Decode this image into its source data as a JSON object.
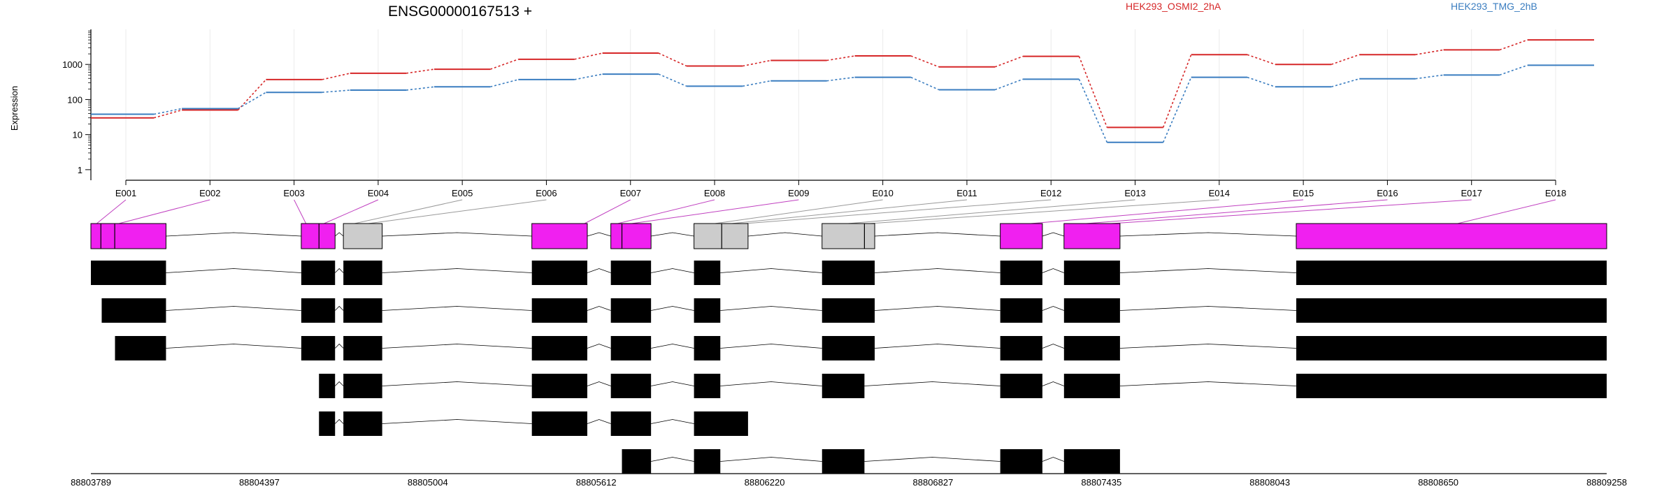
{
  "chart_data": {
    "type": "line",
    "title": "ENSG00000167513 +",
    "ylabel": "Expression",
    "yscale": "log",
    "ylim": [
      0.5,
      10000
    ],
    "yticks": [
      "1",
      "10",
      "100",
      "1000"
    ],
    "grid": true,
    "categories": [
      "E001",
      "E002",
      "E003",
      "E004",
      "E005",
      "E006",
      "E007",
      "E008",
      "E009",
      "E010",
      "E011",
      "E012",
      "E013",
      "E014",
      "E015",
      "E016",
      "E017",
      "E018"
    ],
    "series": [
      {
        "name": "HEK293_OSMI2_2hA",
        "color": "#d62728",
        "values": [
          30,
          50,
          370,
          560,
          730,
          1400,
          2100,
          900,
          1300,
          1750,
          850,
          1700,
          16,
          1900,
          1000,
          1900,
          2600,
          5000
        ]
      },
      {
        "name": "HEK293_TMG_2hB",
        "color": "#3a7dc0",
        "values": [
          38,
          55,
          160,
          185,
          230,
          370,
          530,
          240,
          340,
          430,
          190,
          380,
          6,
          430,
          230,
          390,
          500,
          950
        ]
      }
    ],
    "genomic_axis": {
      "ticks": [
        "88803789",
        "88804397",
        "88805004",
        "88805612",
        "88806220",
        "88806827",
        "88807435",
        "88808043",
        "88808650",
        "88809258"
      ],
      "range": [
        88803789,
        88809258
      ]
    },
    "gene_model": {
      "fill_significant": "#f020f0",
      "fill_nonsignificant": "#cccccc",
      "exons": [
        {
          "start": 88803789,
          "end": 88804060,
          "significant": true,
          "cuts": [
            88803825,
            88803875
          ]
        },
        {
          "start": 88804548,
          "end": 88804670,
          "significant": true,
          "cuts": [
            88804612
          ]
        },
        {
          "start": 88804700,
          "end": 88804840,
          "significant": false,
          "cuts": []
        },
        {
          "start": 88805380,
          "end": 88805580,
          "significant": true,
          "cuts": []
        },
        {
          "start": 88805665,
          "end": 88805810,
          "significant": true,
          "cuts": [
            88805705
          ]
        },
        {
          "start": 88805965,
          "end": 88806160,
          "significant": false,
          "cuts": [
            88806065
          ]
        },
        {
          "start": 88806427,
          "end": 88806617,
          "significant": false,
          "cuts": [
            88806580
          ]
        },
        {
          "start": 88807070,
          "end": 88807222,
          "significant": true,
          "cuts": []
        },
        {
          "start": 88807300,
          "end": 88807502,
          "significant": true,
          "cuts": []
        },
        {
          "start": 88808138,
          "end": 88809258,
          "significant": true,
          "cuts": []
        }
      ],
      "label_links": [
        {
          "bin": 0,
          "pos": 88803810,
          "significant": true
        },
        {
          "bin": 1,
          "pos": 88803890,
          "significant": true
        },
        {
          "bin": 2,
          "pos": 88804565,
          "significant": true
        },
        {
          "bin": 3,
          "pos": 88804630,
          "significant": true
        },
        {
          "bin": 4,
          "pos": 88804740,
          "significant": false
        },
        {
          "bin": 5,
          "pos": 88804790,
          "significant": false
        },
        {
          "bin": 6,
          "pos": 88805570,
          "significant": true
        },
        {
          "bin": 7,
          "pos": 88805690,
          "significant": true
        },
        {
          "bin": 8,
          "pos": 88805740,
          "significant": true
        },
        {
          "bin": 9,
          "pos": 88806040,
          "significant": false
        },
        {
          "bin": 10,
          "pos": 88806100,
          "significant": false
        },
        {
          "bin": 11,
          "pos": 88806150,
          "significant": false
        },
        {
          "bin": 12,
          "pos": 88806520,
          "significant": false
        },
        {
          "bin": 13,
          "pos": 88806600,
          "significant": false
        },
        {
          "bin": 14,
          "pos": 88807180,
          "significant": true
        },
        {
          "bin": 15,
          "pos": 88807380,
          "significant": true
        },
        {
          "bin": 16,
          "pos": 88807470,
          "significant": true
        },
        {
          "bin": 17,
          "pos": 88808720,
          "significant": true
        }
      ],
      "transcripts": [
        [
          [
            88803789,
            88804060
          ],
          [
            88804548,
            88804670
          ],
          [
            88804700,
            88804840
          ],
          [
            88805380,
            88805580
          ],
          [
            88805665,
            88805810
          ],
          [
            88805965,
            88806060
          ],
          [
            88806427,
            88806617
          ],
          [
            88807070,
            88807222
          ],
          [
            88807300,
            88807502
          ],
          [
            88808138,
            88809258
          ]
        ],
        [
          [
            88803828,
            88804060
          ],
          [
            88804548,
            88804670
          ],
          [
            88804700,
            88804840
          ],
          [
            88805380,
            88805580
          ],
          [
            88805665,
            88805810
          ],
          [
            88805965,
            88806060
          ],
          [
            88806427,
            88806617
          ],
          [
            88807070,
            88807222
          ],
          [
            88807300,
            88807502
          ],
          [
            88808138,
            88809258
          ]
        ],
        [
          [
            88803876,
            88804060
          ],
          [
            88804548,
            88804670
          ],
          [
            88804700,
            88804840
          ],
          [
            88805380,
            88805580
          ],
          [
            88805665,
            88805810
          ],
          [
            88805965,
            88806060
          ],
          [
            88806427,
            88806617
          ],
          [
            88807070,
            88807222
          ],
          [
            88807300,
            88807502
          ],
          [
            88808138,
            88809258
          ]
        ],
        [
          [
            88804612,
            88804670
          ],
          [
            88804700,
            88804840
          ],
          [
            88805380,
            88805580
          ],
          [
            88805665,
            88805810
          ],
          [
            88805965,
            88806060
          ],
          [
            88806427,
            88806580
          ],
          [
            88807070,
            88807222
          ],
          [
            88807300,
            88807502
          ],
          [
            88808138,
            88809258
          ]
        ],
        [
          [
            88804612,
            88804670
          ],
          [
            88804700,
            88804840
          ],
          [
            88805380,
            88805580
          ],
          [
            88805665,
            88805810
          ],
          [
            88805965,
            88806160
          ]
        ],
        [
          [
            88805705,
            88805810
          ],
          [
            88805965,
            88806060
          ],
          [
            88806427,
            88806580
          ],
          [
            88807070,
            88807222
          ],
          [
            88807300,
            88807502
          ]
        ]
      ]
    }
  }
}
